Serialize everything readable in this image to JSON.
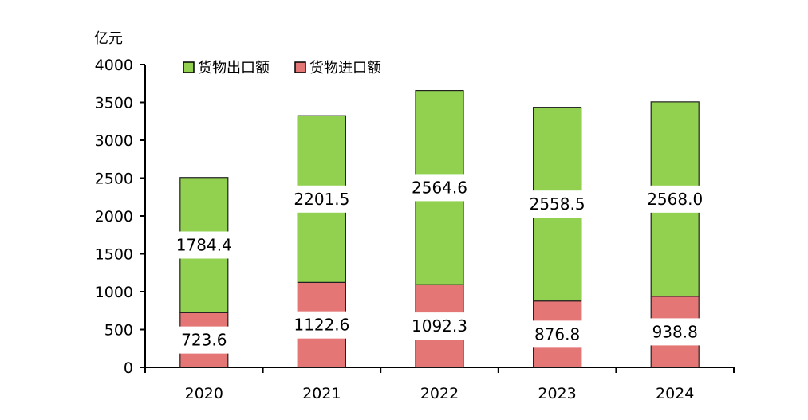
{
  "chart_data": {
    "type": "bar",
    "stacked": true,
    "ylabel": "亿元",
    "ylim": [
      0,
      4000
    ],
    "yticks": [
      0,
      500,
      1000,
      1500,
      2000,
      2500,
      3000,
      3500,
      4000
    ],
    "categories": [
      "2020",
      "2021",
      "2022",
      "2023",
      "2024"
    ],
    "series": [
      {
        "name": "货物进口额",
        "color": "#E47676",
        "values": [
          723.6,
          1122.6,
          1092.3,
          876.8,
          938.8
        ],
        "labels": [
          "723.6",
          "1122.6",
          "1092.3",
          "876.8",
          "938.8"
        ]
      },
      {
        "name": "货物出口额",
        "color": "#92D050",
        "values": [
          1784.4,
          2201.5,
          2564.6,
          2558.5,
          2568.0
        ],
        "labels": [
          "1784.4",
          "2201.5",
          "2564.6",
          "2558.5",
          "2568.0"
        ]
      }
    ],
    "legend_order": [
      1,
      0
    ],
    "legend": "top-left",
    "grid": false
  }
}
